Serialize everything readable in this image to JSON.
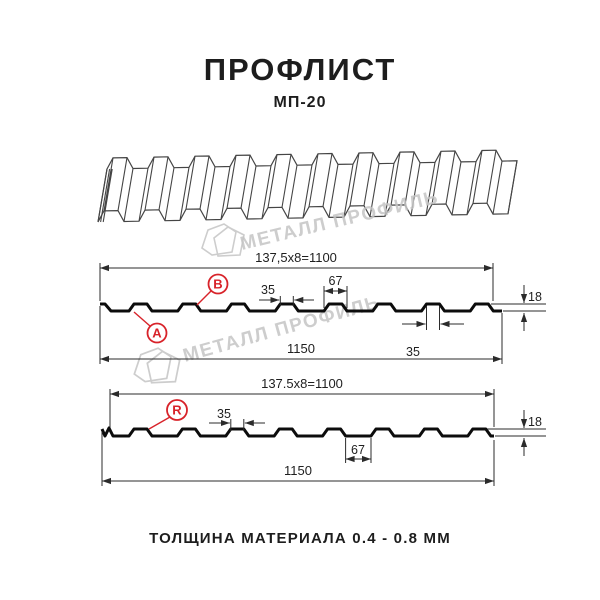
{
  "page": {
    "title": "ПРОФЛИСТ",
    "subtitle": "МП-20",
    "footer_note": "ТОЛЩИНА МАТЕРИАЛА 0.4 - 0.8 ММ"
  },
  "brand": {
    "watermark_text": "МЕТАЛЛ ПРОФИЛЬ",
    "accent_red": "#d8232a",
    "watermark_gray": "#c5c5c5"
  },
  "profile_top": {
    "pitch_label": "137,5x8=1100",
    "overall_width": "1150",
    "crest_width": "35",
    "rib_width": "67",
    "flat_width": "35",
    "height": "18",
    "side_a": "A",
    "side_b": "B"
  },
  "profile_bottom": {
    "pitch_label": "137.5x8=1100",
    "overall_width": "1150",
    "crest_width": "35",
    "valley_width": "67",
    "height": "18",
    "side_r": "R"
  }
}
